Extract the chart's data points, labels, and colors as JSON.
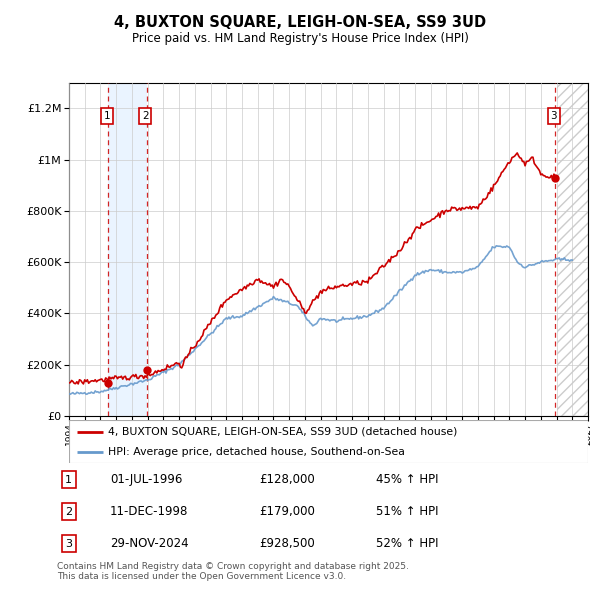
{
  "title": "4, BUXTON SQUARE, LEIGH-ON-SEA, SS9 3UD",
  "subtitle": "Price paid vs. HM Land Registry's House Price Index (HPI)",
  "hpi_color": "#6699cc",
  "price_color": "#cc0000",
  "x_start_year": 1994,
  "x_end_year": 2027,
  "ylim": [
    0,
    1300000
  ],
  "yticks": [
    0,
    200000,
    400000,
    600000,
    800000,
    1000000,
    1200000
  ],
  "ytick_labels": [
    "£0",
    "£200K",
    "£400K",
    "£600K",
    "£800K",
    "£1M",
    "£1.2M"
  ],
  "transactions": [
    {
      "date": 1996.5,
      "price": 128000,
      "label": "1"
    },
    {
      "date": 1998.95,
      "price": 179000,
      "label": "2"
    },
    {
      "date": 2024.92,
      "price": 928500,
      "label": "3"
    }
  ],
  "transaction_table": [
    {
      "num": "1",
      "date": "01-JUL-1996",
      "price": "£128,000",
      "hpi": "45% ↑ HPI"
    },
    {
      "num": "2",
      "date": "11-DEC-1998",
      "price": "£179,000",
      "hpi": "51% ↑ HPI"
    },
    {
      "num": "3",
      "date": "29-NOV-2024",
      "price": "£928,500",
      "hpi": "52% ↑ HPI"
    }
  ],
  "legend_price_label": "4, BUXTON SQUARE, LEIGH-ON-SEA, SS9 3UD (detached house)",
  "legend_hpi_label": "HPI: Average price, detached house, Southend-on-Sea",
  "footer": "Contains HM Land Registry data © Crown copyright and database right 2025.\nThis data is licensed under the Open Government Licence v3.0."
}
